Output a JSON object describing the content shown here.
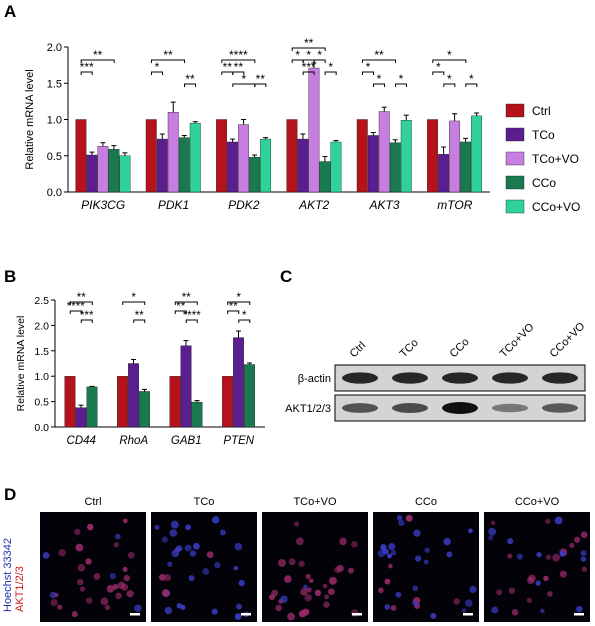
{
  "panels": {
    "A": {
      "letter": "A"
    },
    "B": {
      "letter": "B"
    },
    "C": {
      "letter": "C"
    },
    "D": {
      "letter": "D"
    }
  },
  "colors": {
    "ctrl": "#b5121b",
    "tco": "#5b1e8e",
    "tco_vo": "#c77ee0",
    "cco": "#1a7a4f",
    "cco_vo": "#2fd39a"
  },
  "chart_data": [
    {
      "type": "bar",
      "panel": "A",
      "categories": [
        "PIK3CG",
        "PDK1",
        "PDK2",
        "AKT2",
        "AKT3",
        "mTOR"
      ],
      "ylabel": "Relative mRNA level",
      "ylim": [
        0,
        2.0
      ],
      "yticks": [
        "0.0",
        "0.5",
        "1.0",
        "1.5",
        "2.0"
      ],
      "legend_position": "right",
      "series": [
        {
          "name": "Ctrl",
          "values": [
            1.0,
            1.0,
            1.0,
            1.0,
            1.0,
            1.0
          ],
          "errors": [
            0,
            0,
            0,
            0,
            0,
            0
          ]
        },
        {
          "name": "TCo",
          "values": [
            0.51,
            0.73,
            0.69,
            0.73,
            0.78,
            0.52
          ],
          "errors": [
            0.04,
            0.07,
            0.04,
            0.07,
            0.04,
            0.1
          ]
        },
        {
          "name": "TCo+VO",
          "values": [
            0.63,
            1.1,
            0.93,
            1.71,
            1.11,
            0.98
          ],
          "errors": [
            0.05,
            0.14,
            0.07,
            0.07,
            0.06,
            0.1
          ]
        },
        {
          "name": "CCo",
          "values": [
            0.59,
            0.75,
            0.48,
            0.42,
            0.68,
            0.69
          ],
          "errors": [
            0.05,
            0.03,
            0.03,
            0.07,
            0.04,
            0.05
          ]
        },
        {
          "name": "CCo+VO",
          "values": [
            0.5,
            0.95,
            0.73,
            0.69,
            0.99,
            1.05
          ],
          "errors": [
            0.04,
            0.02,
            0.02,
            0.02,
            0.07,
            0.04
          ]
        }
      ],
      "significance": [
        {
          "group": 0,
          "from": 0,
          "to": 3,
          "label": "**",
          "level": 1
        },
        {
          "group": 0,
          "from": 0,
          "to": 1,
          "label": "***",
          "level": 0
        },
        {
          "group": 1,
          "from": 0,
          "to": 3,
          "label": "**",
          "level": 1
        },
        {
          "group": 1,
          "from": 0,
          "to": 1,
          "label": "*",
          "level": 0
        },
        {
          "group": 1,
          "from": 3,
          "to": 4,
          "label": "**",
          "level": -1
        },
        {
          "group": 2,
          "from": 0,
          "to": 3,
          "label": "****",
          "level": 1
        },
        {
          "group": 2,
          "from": 0,
          "to": 1,
          "label": "**",
          "level": 0
        },
        {
          "group": 2,
          "from": 1,
          "to": 2,
          "label": "**",
          "level": 0
        },
        {
          "group": 2,
          "from": 1,
          "to": 3,
          "label": "*",
          "level": -1
        },
        {
          "group": 2,
          "from": 3,
          "to": 4,
          "label": "**",
          "level": -1
        },
        {
          "group": 3,
          "from": 0,
          "to": 3,
          "label": "**",
          "level": 2
        },
        {
          "group": 3,
          "from": 0,
          "to": 1,
          "label": "*",
          "level": 1
        },
        {
          "group": 3,
          "from": 1,
          "to": 2,
          "label": "*",
          "level": 1
        },
        {
          "group": 3,
          "from": 2,
          "to": 3,
          "label": "*",
          "level": 1
        },
        {
          "group": 3,
          "from": 1,
          "to": 2,
          "label": "***",
          "level": 0
        },
        {
          "group": 3,
          "from": 3,
          "to": 4,
          "label": "*",
          "level": 0
        },
        {
          "group": 4,
          "from": 0,
          "to": 3,
          "label": "**",
          "level": 1
        },
        {
          "group": 4,
          "from": 0,
          "to": 1,
          "label": "*",
          "level": 0
        },
        {
          "group": 4,
          "from": 1,
          "to": 2,
          "label": "*",
          "level": -1
        },
        {
          "group": 4,
          "from": 3,
          "to": 4,
          "label": "*",
          "level": -1
        },
        {
          "group": 5,
          "from": 0,
          "to": 3,
          "label": "*",
          "level": 1
        },
        {
          "group": 5,
          "from": 0,
          "to": 1,
          "label": "*",
          "level": 0
        },
        {
          "group": 5,
          "from": 1,
          "to": 2,
          "label": "*",
          "level": -1
        },
        {
          "group": 5,
          "from": 3,
          "to": 4,
          "label": "*",
          "level": -1
        }
      ]
    },
    {
      "type": "bar",
      "panel": "B",
      "categories": [
        "CD44",
        "RhoA",
        "GAB1",
        "PTEN"
      ],
      "ylabel": "Relative mRNA level",
      "ylim": [
        0,
        2.5
      ],
      "yticks": [
        "0.0",
        "0.5",
        "1.0",
        "1.5",
        "2.0",
        "2.5"
      ],
      "series": [
        {
          "name": "Ctrl",
          "values": [
            1.0,
            1.0,
            1.0,
            1.0
          ],
          "errors": [
            0,
            0,
            0,
            0
          ]
        },
        {
          "name": "TCo",
          "values": [
            0.38,
            1.25,
            1.6,
            1.76
          ],
          "errors": [
            0.05,
            0.08,
            0.1,
            0.13
          ]
        },
        {
          "name": "CCo",
          "values": [
            0.79,
            0.7,
            0.49,
            1.23
          ],
          "errors": [
            0.01,
            0.04,
            0.03,
            0.03
          ]
        }
      ],
      "significance": [
        {
          "group": 0,
          "from": 0,
          "to": 2,
          "label": "**",
          "level": 2
        },
        {
          "group": 0,
          "from": 0,
          "to": 1,
          "label": "****",
          "level": 1
        },
        {
          "group": 0,
          "from": 1,
          "to": 2,
          "label": "***",
          "level": 0
        },
        {
          "group": 1,
          "from": 0,
          "to": 2,
          "label": "*",
          "level": 2
        },
        {
          "group": 1,
          "from": 1,
          "to": 2,
          "label": "**",
          "level": 0
        },
        {
          "group": 2,
          "from": 0,
          "to": 2,
          "label": "**",
          "level": 2
        },
        {
          "group": 2,
          "from": 0,
          "to": 1,
          "label": "**",
          "level": 1
        },
        {
          "group": 2,
          "from": 1,
          "to": 2,
          "label": "****",
          "level": 0
        },
        {
          "group": 3,
          "from": 0,
          "to": 2,
          "label": "*",
          "level": 2
        },
        {
          "group": 3,
          "from": 0,
          "to": 1,
          "label": "**",
          "level": 1
        },
        {
          "group": 3,
          "from": 1,
          "to": 2,
          "label": "*",
          "level": 0
        }
      ]
    }
  ],
  "western_blot": {
    "lanes": [
      "Ctrl",
      "TCo",
      "CCo",
      "TCo+VO",
      "CCo+VO"
    ],
    "rows": [
      {
        "label": "β-actin",
        "intensities": [
          0.85,
          0.85,
          0.85,
          0.85,
          0.85
        ]
      },
      {
        "label": "AKT1/2/3",
        "intensities": [
          0.55,
          0.6,
          1.0,
          0.3,
          0.5
        ]
      }
    ]
  },
  "microscopy": {
    "stain_blue": "Hoechst 33342",
    "stain_red": "AKT1/2/3",
    "panels": [
      {
        "label": "Ctrl"
      },
      {
        "label": "TCo"
      },
      {
        "label": "TCo+VO"
      },
      {
        "label": "CCo"
      },
      {
        "label": "CCo+VO"
      }
    ]
  }
}
